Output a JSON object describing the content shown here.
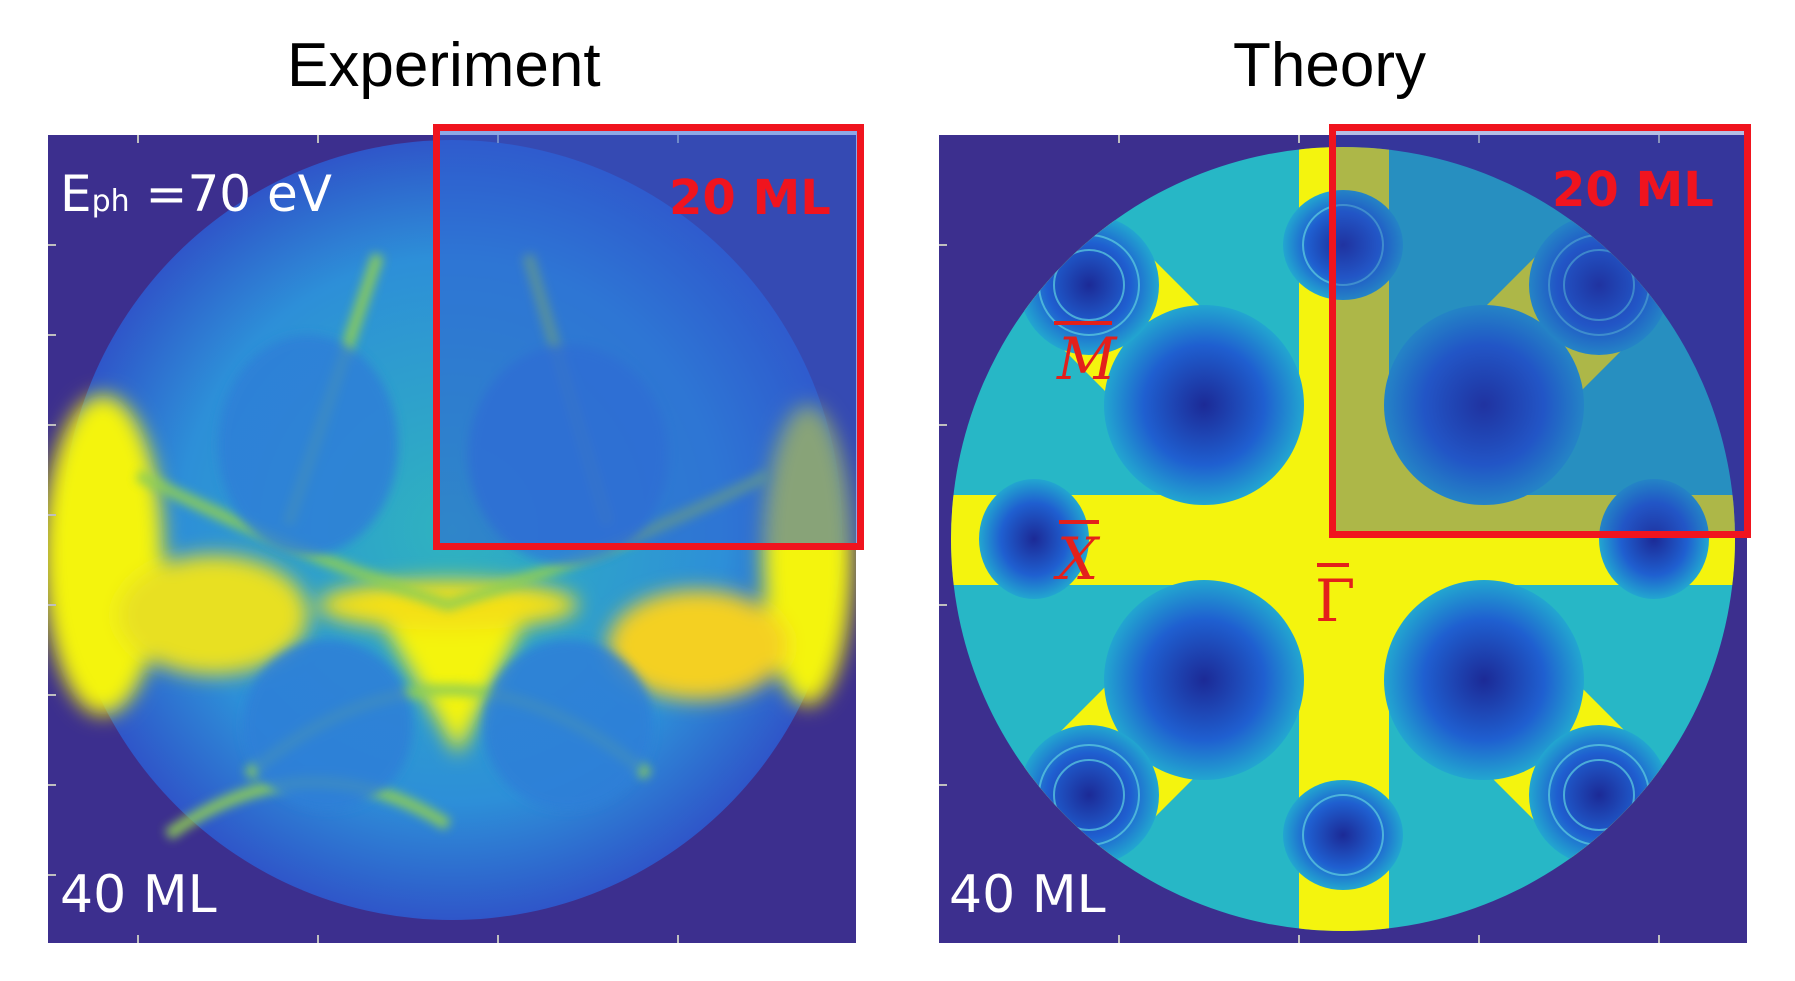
{
  "left_panel": {
    "title": "Experiment",
    "energy_label_main": "E",
    "energy_label_sub": "ph",
    "energy_label_value": " =70 eV",
    "inset_label": "20 ML",
    "thickness_label": "40 ML"
  },
  "right_panel": {
    "title": "Theory",
    "inset_label": "20 ML",
    "thickness_label": "40 ML",
    "points": [
      "M",
      "X",
      "Γ"
    ]
  },
  "colors": {
    "background": "#3c2f8e",
    "low": "#2a6fd6",
    "mid": "#21b3c4",
    "high": "#f4f40e",
    "box": "#f0141e"
  }
}
